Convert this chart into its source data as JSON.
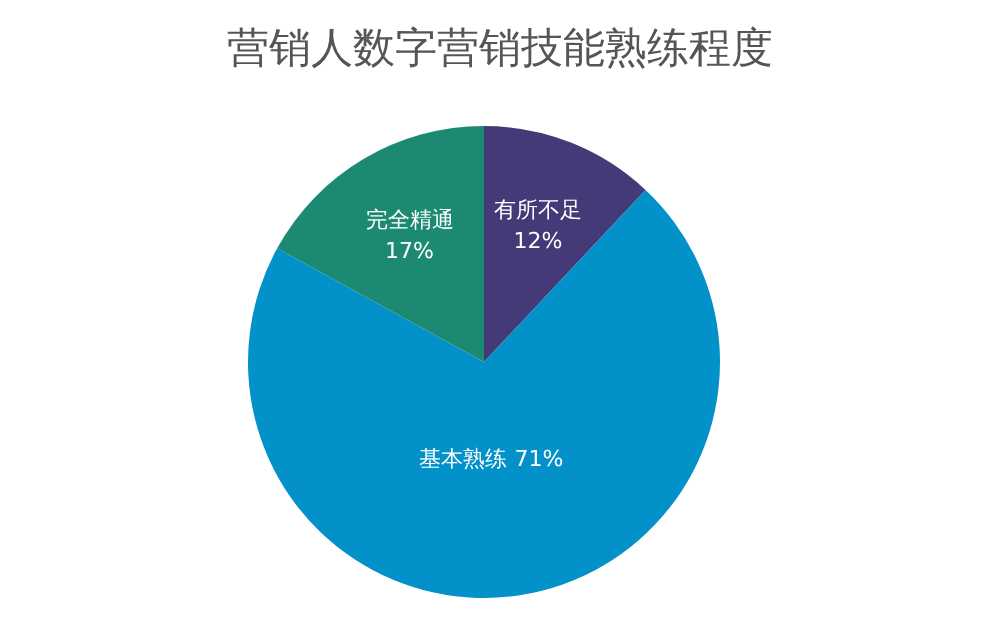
{
  "chart_data": {
    "type": "pie",
    "title": "营销人数字营销技能熟练程度",
    "categories": [
      "有所不足",
      "基本熟练",
      "完全精通"
    ],
    "values": [
      12,
      71,
      17
    ],
    "colors": [
      "#443a78",
      "#0291c9",
      "#1c8a72"
    ],
    "value_labels": [
      "12%",
      "71%",
      "17%"
    ],
    "legend": false
  }
}
